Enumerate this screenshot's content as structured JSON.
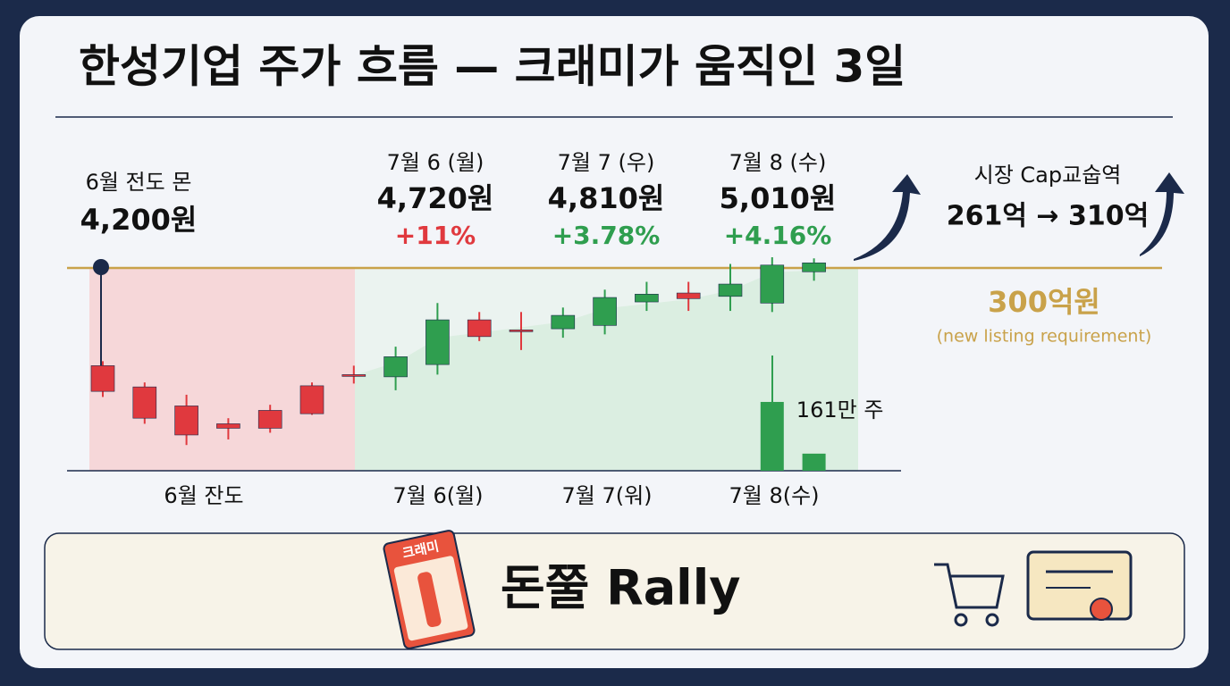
{
  "header": {
    "title": "한성기업 주가 흐름 — 크래미가 움직인 3일"
  },
  "chart_data": {
    "type": "candlestick",
    "ylim": [
      3200,
      5150
    ],
    "open": [
      4140,
      3950,
      3780,
      3620,
      3740,
      3960,
      4060,
      4040,
      4150,
      4550,
      4460,
      4470,
      4500,
      4710,
      4790,
      4760,
      4700,
      4980
    ],
    "high": [
      4180,
      3990,
      3880,
      3670,
      3790,
      3990,
      4140,
      4310,
      4700,
      4620,
      4620,
      4660,
      4820,
      4890,
      4890,
      5050,
      5110,
      5100
    ],
    "low": [
      3860,
      3620,
      3430,
      3480,
      3540,
      3700,
      3980,
      3920,
      4060,
      4360,
      4280,
      4390,
      4420,
      4630,
      4630,
      4630,
      4620,
      4900
    ],
    "close": [
      3910,
      3670,
      3520,
      3580,
      3580,
      3710,
      4050,
      4220,
      4550,
      4400,
      4450,
      4590,
      4750,
      4780,
      4740,
      4870,
      5040,
      5060
    ],
    "colors": {
      "up": "#2f9e4f",
      "down": "#e0393e"
    },
    "period_labels": [
      "6월 잔도",
      "7월 6(월)",
      "7월 7(워)",
      "7월 8(수)"
    ],
    "volume": {
      "values": [
        161,
        40
      ],
      "value_labels": [
        "161만 주",
        null
      ],
      "ylim": [
        0,
        510
      ],
      "color": "#2f9e4f"
    },
    "annotations": [
      {
        "date": "6월 전도 몬",
        "price": "4,200원"
      },
      {
        "date": "7월 6 (월)",
        "price": "4,720원",
        "change": "+11%",
        "change_color": "#e0393e"
      },
      {
        "date": "7월 7 (우)",
        "price": "4,810원",
        "change": "+3.78%",
        "change_color": "#2f9e4f"
      },
      {
        "date": "7월 8 (수)",
        "price": "5,010원",
        "change": "+4.16%",
        "change_color": "#2f9e4f"
      }
    ],
    "reference": {
      "label": "300억원",
      "note": "(new listing requirement)",
      "color": "#c9a24a"
    },
    "market_cap": {
      "label": "시장 Cap교숩역",
      "text": "261억 → 310억"
    }
  },
  "banner": {
    "title": "돈쭐 Rally",
    "product": "크래미"
  }
}
